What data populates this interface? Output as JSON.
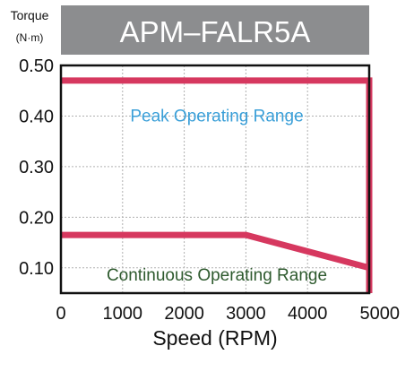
{
  "chart_data": {
    "type": "line",
    "title": "APM–FALR5A",
    "ylabel": "Torque",
    "yunit": "(N·m)",
    "xlabel": "Speed (RPM)",
    "xlim": [
      0,
      5000
    ],
    "ylim": [
      0.05,
      0.5
    ],
    "x_ticks": [
      0,
      1000,
      2000,
      3000,
      4000,
      5000
    ],
    "x_tick_labels": [
      "0",
      "1000",
      "2000",
      "3000",
      "4000",
      "5000"
    ],
    "y_ticks": [
      0.1,
      0.2,
      0.3,
      0.4,
      0.5
    ],
    "y_tick_labels": [
      "0.10",
      "0.20",
      "0.30",
      "0.40",
      "0.50"
    ],
    "grid": true,
    "series": [
      {
        "x": [
          0,
          5000,
          5000
        ],
        "y": [
          0.47,
          0.47,
          0.05
        ]
      },
      {
        "x": [
          0,
          3000,
          5000
        ],
        "y": [
          0.165,
          0.165,
          0.1
        ]
      }
    ],
    "annotations": [
      {
        "text": "Peak Operating Range",
        "x": 2500,
        "y": 0.4
      },
      {
        "text": "Continuous Operating Range",
        "x": 2500,
        "y": 0.085
      }
    ],
    "colors": {
      "title_bg": "#8c8d8f",
      "title_text": "#ffffff",
      "curve": "#d6385f",
      "peak_label": "#3a9fd8",
      "continuous_label": "#2e5a2e",
      "axis": "#111111",
      "grid": "#b0b0b0"
    }
  }
}
